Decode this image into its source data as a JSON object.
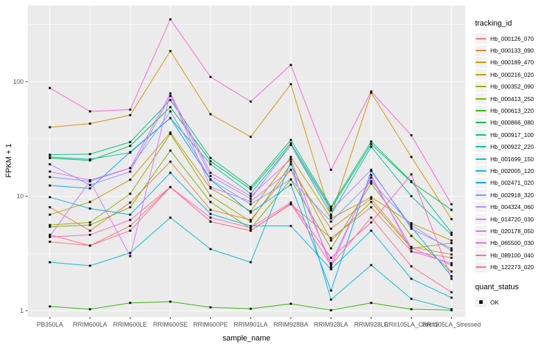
{
  "chart_data": {
    "type": "line",
    "title": "",
    "xlabel": "sample_name",
    "ylabel": "FPKM + 1",
    "y_scale": "log10",
    "y_ticks": [
      1,
      10,
      100
    ],
    "ylim": [
      1,
      460
    ],
    "grid": "major-and-minor-white-on-gray",
    "legend_position": "right",
    "legend_titles": {
      "series": "tracking_id",
      "points": "quant_status"
    },
    "point_legend": {
      "label": "OK",
      "marker": "black-square"
    },
    "panel_bg": "#EBEBEB",
    "grid_color": "#FFFFFF",
    "point_color": "#000000",
    "tick_label_color": "#4D4D4D",
    "categories": [
      "PB350LA",
      "RRIM600LA",
      "RRIM600LE",
      "RRIM600SE",
      "RRIM600PE",
      "RRIM901LA",
      "RRIM928BA",
      "RRIM928LA",
      "RRIM928LE",
      "RRII105LA_Control",
      "RRII105LA_Stressed"
    ],
    "series": [
      {
        "name": "Hb_000126_070",
        "color": "#F8766D",
        "values": [
          4.0,
          3.7,
          5.5,
          12,
          6.0,
          5.0,
          8.5,
          4.3,
          8.0,
          3.3,
          2.9
        ]
      },
      {
        "name": "Hb_000133_090",
        "color": "#EA8331",
        "values": [
          8.0,
          5.0,
          8.8,
          20,
          7.6,
          6.2,
          17,
          5.2,
          9.5,
          3.6,
          3.1
        ]
      },
      {
        "name": "Hb_000189_470",
        "color": "#D89000",
        "values": [
          40,
          43,
          51,
          185,
          52,
          33,
          95,
          6.7,
          80,
          22,
          6.3
        ]
      },
      {
        "name": "Hb_000216_020",
        "color": "#C09B00",
        "values": [
          6.9,
          8.9,
          13.9,
          36,
          11.7,
          7.4,
          22,
          6.4,
          9.8,
          5.8,
          4.1
        ]
      },
      {
        "name": "Hb_000352_090",
        "color": "#A3A500",
        "values": [
          5.6,
          5.9,
          10.5,
          35,
          10.1,
          6.0,
          19,
          4.1,
          8.9,
          3.5,
          3.9
        ]
      },
      {
        "name": "Hb_000413_250",
        "color": "#7CAE00",
        "values": [
          5.4,
          5.6,
          8.0,
          25,
          8.9,
          5.2,
          14,
          3.5,
          12.9,
          4.5,
          2.2
        ]
      },
      {
        "name": "Hb_000613_220",
        "color": "#2DB600",
        "values": [
          1.09,
          1.03,
          1.17,
          1.2,
          1.07,
          1.04,
          1.15,
          1.01,
          1.17,
          1.03,
          1.01
        ]
      },
      {
        "name": "Hb_000866_080",
        "color": "#00BC51",
        "values": [
          21.5,
          20.5,
          27.5,
          60,
          20.2,
          11.5,
          29,
          7.8,
          28.5,
          13.3,
          7.6
        ]
      },
      {
        "name": "Hb_000917_100",
        "color": "#00C087",
        "values": [
          23,
          23.3,
          29.7,
          69,
          21.6,
          12,
          31,
          8.1,
          30,
          13.5,
          4.8
        ]
      },
      {
        "name": "Hb_000922_220",
        "color": "#00C0AF",
        "values": [
          22,
          21,
          24,
          48,
          19,
          10.5,
          28,
          6.9,
          27,
          10,
          4.6
        ]
      },
      {
        "name": "Hb_001699_150",
        "color": "#00BDD1",
        "values": [
          2.65,
          2.47,
          3.2,
          6.5,
          3.45,
          2.65,
          20,
          1.25,
          2.5,
          1.27,
          1.03
        ]
      },
      {
        "name": "Hb_002005_120",
        "color": "#00B5EB",
        "values": [
          9.8,
          7.8,
          6.9,
          16,
          7.0,
          5.5,
          5.5,
          2.3,
          5.0,
          1.9,
          1.3
        ]
      },
      {
        "name": "Hb_002471_020",
        "color": "#06A5FF",
        "values": [
          12.4,
          11.7,
          24.3,
          48,
          13.9,
          7.2,
          12.6,
          1.5,
          16.6,
          5.4,
          2.0
        ]
      },
      {
        "name": "Hb_002918_320",
        "color": "#7997FF",
        "values": [
          14.7,
          13.5,
          17.6,
          55,
          14,
          8.5,
          14,
          6.0,
          13.5,
          5.6,
          3.35
        ]
      },
      {
        "name": "Hb_004324_060",
        "color": "#AC8AFF",
        "values": [
          19,
          12.5,
          16.4,
          75,
          15,
          9.5,
          28,
          7.5,
          17,
          5.2,
          3.5
        ]
      },
      {
        "name": "Hb_014720_030",
        "color": "#D277FF",
        "values": [
          4.5,
          13.5,
          3.0,
          79,
          12,
          9.0,
          17,
          2.6,
          14.5,
          3.55,
          2.5
        ]
      },
      {
        "name": "Hb_020178_050",
        "color": "#EB67EF",
        "values": [
          16.4,
          13.8,
          17.6,
          79,
          16,
          10,
          21,
          2.4,
          15.3,
          3.3,
          2.6
        ]
      },
      {
        "name": "Hb_065500_030",
        "color": "#FA61D5",
        "values": [
          88,
          55,
          57,
          350,
          110,
          67,
          140,
          17,
          82,
          34,
          8.5
        ]
      },
      {
        "name": "Hb_089100_040",
        "color": "#FF63B4",
        "values": [
          4.4,
          4.6,
          6.2,
          12,
          6.5,
          5.3,
          8.8,
          2.9,
          5.9,
          15.5,
          1.9
        ]
      },
      {
        "name": "Hb_122273_020",
        "color": "#FF6B94",
        "values": [
          4.6,
          3.7,
          5.0,
          12,
          6.0,
          5.0,
          8.6,
          2.5,
          6.5,
          2.44,
          1.45
        ]
      }
    ]
  }
}
